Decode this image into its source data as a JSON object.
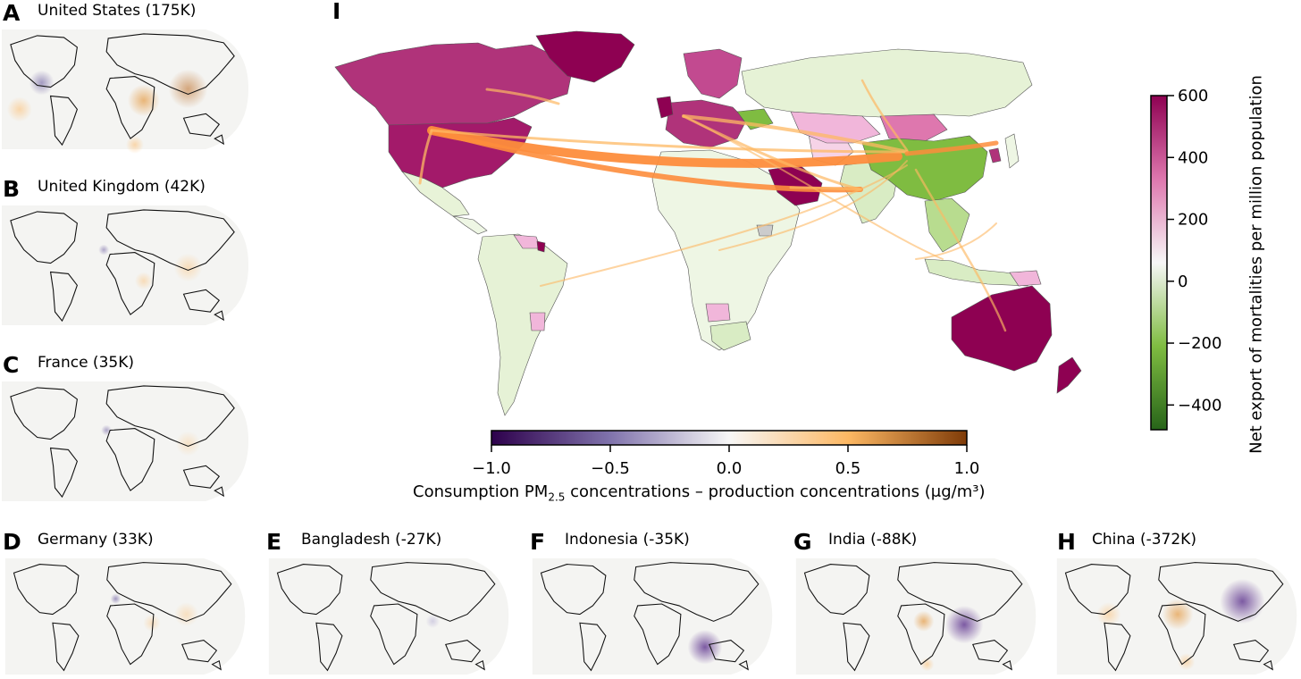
{
  "panels": [
    {
      "letter": "A",
      "title": "United States  (175K)"
    },
    {
      "letter": "B",
      "title": "United Kingdom (42K)"
    },
    {
      "letter": "C",
      "title": "France (35K)"
    },
    {
      "letter": "D",
      "title": "Germany (33K)"
    },
    {
      "letter": "E",
      "title": "Bangladesh (-27K)"
    },
    {
      "letter": "F",
      "title": "Indonesia (-35K)"
    },
    {
      "letter": "G",
      "title": "India (-88K)"
    },
    {
      "letter": "H",
      "title": "China (-372K)"
    }
  ],
  "main_panel": {
    "letter": "I"
  },
  "colorbar_pm": {
    "label_prefix": "Consumption PM",
    "label_sub": "2.5",
    "label_suffix": " concentrations – production concentrations (μg/m³)",
    "ticks": [
      "−1.0",
      "−0.5",
      "0.0",
      "0.5",
      "1.0"
    ],
    "range": [
      -1.0,
      1.0
    ],
    "colors": [
      "#2d004b",
      "#8073ac",
      "#f7f7f7",
      "#fdb863",
      "#7f3b08"
    ]
  },
  "colorbar_mort": {
    "label": "Net export of mortalities per million population",
    "ticks": [
      "600",
      "400",
      "200",
      "0",
      "−200",
      "−400"
    ],
    "range": [
      -480,
      600
    ],
    "colors": [
      "#276419",
      "#7fbc41",
      "#f7f7f7",
      "#de77ae",
      "#8e0152"
    ]
  },
  "flow_color": "#fd8d3c"
}
